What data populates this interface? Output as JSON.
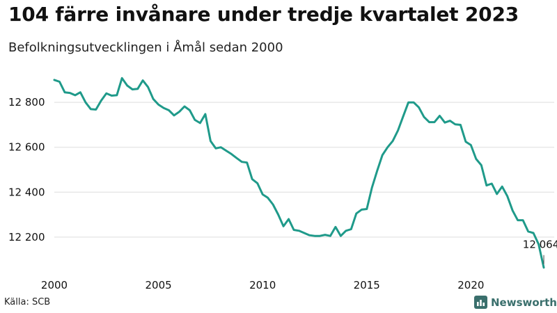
{
  "title": "104 färre invånare under tredje kvartalet 2023",
  "subtitle": "Befolkningsutvecklingen i Åmål sedan 2000",
  "source": "Källa: SCB",
  "brand": "Newsworthy",
  "colors": {
    "line": "#1f9a8a",
    "grid": "#dddddd",
    "brand": "#3a6f6c"
  },
  "icons": {
    "brand": "bar-chart-logo-icon"
  },
  "chart_data": {
    "type": "line",
    "title": "104 färre invånare under tredje kvartalet 2023",
    "subtitle": "Befolkningsutvecklingen i Åmål sedan 2000",
    "x_tick_labels": [
      "2000",
      "2005",
      "2010",
      "2015",
      "2020"
    ],
    "y_tick_labels": [
      "12 200",
      "12 400",
      "12 600",
      "12 800"
    ],
    "xlim": [
      2000,
      2024
    ],
    "ylim": [
      12060,
      12940
    ],
    "grid": "horizontal",
    "legend": "none",
    "annotation": {
      "text": "12 064",
      "x": "2023Q3",
      "y": 12064
    },
    "series": [
      {
        "x": [
          "2000Q1",
          "2000Q2",
          "2000Q3",
          "2000Q4",
          "2001Q1",
          "2001Q2",
          "2001Q3",
          "2001Q4",
          "2002Q1",
          "2002Q2",
          "2002Q3",
          "2002Q4",
          "2003Q1",
          "2003Q2",
          "2003Q3",
          "2003Q4",
          "2004Q1",
          "2004Q2",
          "2004Q3",
          "2004Q4",
          "2005Q1",
          "2005Q2",
          "2005Q3",
          "2005Q4",
          "2006Q1",
          "2006Q2",
          "2006Q3",
          "2006Q4",
          "2007Q1",
          "2007Q2",
          "2007Q3",
          "2007Q4",
          "2008Q1",
          "2008Q2",
          "2008Q3",
          "2008Q4",
          "2009Q1",
          "2009Q2",
          "2009Q3",
          "2009Q4",
          "2010Q1",
          "2010Q2",
          "2010Q3",
          "2010Q4",
          "2011Q1",
          "2011Q2",
          "2011Q3",
          "2011Q4",
          "2012Q1",
          "2012Q2",
          "2012Q3",
          "2012Q4",
          "2013Q1",
          "2013Q2",
          "2013Q3",
          "2013Q4",
          "2014Q1",
          "2014Q2",
          "2014Q3",
          "2014Q4",
          "2015Q1",
          "2015Q2",
          "2015Q3",
          "2015Q4",
          "2016Q1",
          "2016Q2",
          "2016Q3",
          "2016Q4",
          "2017Q1",
          "2017Q2",
          "2017Q3",
          "2017Q4",
          "2018Q1",
          "2018Q2",
          "2018Q3",
          "2018Q4",
          "2019Q1",
          "2019Q2",
          "2019Q3",
          "2019Q4",
          "2020Q1",
          "2020Q2",
          "2020Q3",
          "2020Q4",
          "2021Q1",
          "2021Q2",
          "2021Q3",
          "2021Q4",
          "2022Q1",
          "2022Q2",
          "2022Q3",
          "2022Q4",
          "2023Q1",
          "2023Q2",
          "2023Q3"
        ],
        "y": [
          12900,
          12892,
          12845,
          12842,
          12832,
          12845,
          12800,
          12770,
          12768,
          12808,
          12840,
          12830,
          12832,
          12908,
          12875,
          12858,
          12860,
          12898,
          12868,
          12815,
          12790,
          12775,
          12765,
          12742,
          12758,
          12782,
          12765,
          12722,
          12708,
          12748,
          12628,
          12595,
          12600,
          12585,
          12570,
          12552,
          12535,
          12532,
          12458,
          12440,
          12390,
          12375,
          12345,
          12300,
          12248,
          12280,
          12232,
          12228,
          12218,
          12208,
          12205,
          12205,
          12210,
          12205,
          12245,
          12205,
          12228,
          12235,
          12305,
          12322,
          12325,
          12420,
          12495,
          12565,
          12600,
          12628,
          12675,
          12738,
          12800,
          12800,
          12778,
          12735,
          12712,
          12712,
          12740,
          12710,
          12718,
          12702,
          12700,
          12625,
          12610,
          12548,
          12520,
          12430,
          12438,
          12392,
          12425,
          12382,
          12318,
          12275,
          12275,
          12225,
          12218,
          12168,
          12064
        ]
      }
    ]
  }
}
